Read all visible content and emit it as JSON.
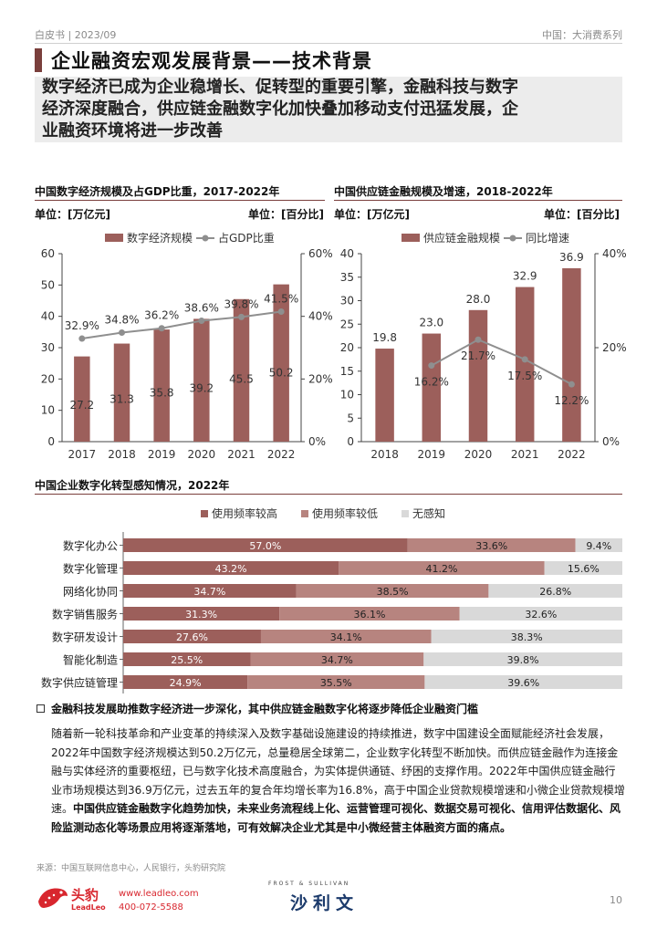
{
  "header": {
    "left": "白皮书 | 2023/09",
    "right": "中国：大消费系列"
  },
  "title": "企业融资宏观发展背景——技术背景",
  "summary": [
    "数字经济已成为企业稳增长、促转型的重要引擎，金融科技与数字",
    "经济深度融合，供应链金融数字化加快叠加移动支付迅猛发展，企",
    "业融资环境将进一步改善"
  ],
  "colors": {
    "bar_dark": "#9c5f5b",
    "bar_mid": "#b7847f",
    "bar_light": "#d9d9d9",
    "line": "#8f8f8f",
    "accent": "#7a3f3c"
  },
  "chart_data": [
    {
      "type": "bar+line",
      "title": "中国数字经济规模及占GDP比重，2017-2022年",
      "unit_left": "单位：[万亿元]",
      "unit_right": "单位：[百分比]",
      "legend": [
        "数字经济规模",
        "占GDP比重"
      ],
      "categories": [
        "2017",
        "2018",
        "2019",
        "2020",
        "2021",
        "2022"
      ],
      "bar_values": [
        27.2,
        31.3,
        35.8,
        39.2,
        45.5,
        50.2
      ],
      "bar_labels": [
        "27.2",
        "31.3",
        "35.8",
        "39.2",
        "45.5",
        "50.2"
      ],
      "line_values": [
        32.9,
        34.8,
        36.2,
        38.6,
        39.8,
        41.5
      ],
      "line_labels": [
        "32.9%",
        "34.8%",
        "36.2%",
        "38.6%",
        "39.8%",
        "41.5%"
      ],
      "y_left": {
        "min": 0,
        "max": 60,
        "ticks": [
          "0",
          "10",
          "20",
          "30",
          "40",
          "50",
          "60"
        ]
      },
      "y_right": {
        "min": 0,
        "max": 60,
        "ticks": [
          "0%",
          "20%",
          "40%",
          "60%"
        ]
      }
    },
    {
      "type": "bar+line",
      "title": "中国供应链金融规模及增速，2018-2022年",
      "unit_left": "单位：[万亿元]",
      "unit_right": "单位：[百分比]",
      "legend": [
        "供应链金融规模",
        "同比增速"
      ],
      "categories": [
        "2018",
        "2019",
        "2020",
        "2021",
        "2022"
      ],
      "bar_values": [
        19.8,
        23.0,
        28.0,
        32.9,
        36.9
      ],
      "bar_labels": [
        "19.8",
        "23.0",
        "28.0",
        "32.9",
        "36.9"
      ],
      "line_values": [
        null,
        16.2,
        21.7,
        17.5,
        12.2
      ],
      "line_labels": [
        "",
        "16.2%",
        "21.7%",
        "17.5%",
        "12.2%"
      ],
      "y_left": {
        "min": 0,
        "max": 40,
        "ticks": [
          "0",
          "5",
          "10",
          "15",
          "20",
          "25",
          "30",
          "35",
          "40"
        ]
      },
      "y_right": {
        "min": 0,
        "max": 40,
        "ticks": [
          "0%",
          "20%",
          "40%"
        ]
      }
    },
    {
      "type": "stacked-bar-horizontal",
      "title": "中国企业数字化转型感知情况，2022年",
      "legend": [
        "使用频率较高",
        "使用频率较低",
        "无感知"
      ],
      "categories": [
        "数字化办公",
        "数字化管理",
        "网络化协同",
        "数字销售服务",
        "数字研发设计",
        "智能化制造",
        "数字供应链管理"
      ],
      "series": [
        {
          "name": "使用频率较高",
          "values": [
            57.0,
            43.2,
            34.7,
            31.3,
            27.6,
            25.5,
            24.9
          ]
        },
        {
          "name": "使用频率较低",
          "values": [
            33.6,
            41.2,
            38.5,
            36.1,
            34.1,
            34.7,
            35.5
          ]
        },
        {
          "name": "无感知",
          "values": [
            9.4,
            15.6,
            26.8,
            32.6,
            38.3,
            39.8,
            39.6
          ]
        }
      ]
    }
  ],
  "bullet": "金融科技发展助推数字经济进一步深化，其中供应链金融数字化将逐步降低企业融资门槛",
  "paragraph": {
    "normal": "随着新一轮科技革命和产业变革的持续深入及数字基础设施建设的持续推进，数字中国建设全面赋能经济社会发展，2022年中国数字经济规模达到50.2万亿元，总量稳居全球第二，企业数字化转型不断加快。而供应链金融作为连接金融与实体经济的重要枢纽，已与数字化技术高度融合，为实体提供通链、纾困的支撑作用。2022年中国供应链金融行业市场规模达到36.9万亿元，过去五年的复合年均增长率为16.8%，高于中国企业贷款规模增速和小微企业贷款规模增速。",
    "bold": "中国供应链金融数字化趋势加快，未来业务流程线上化、运营管理可视化、数据交易可视化、信用评估数据化、风险监测动态化等场景应用将逐渐落地，可有效解决企业尤其是中小微经营主体融资方面的痛点。"
  },
  "source": "来源：中国互联网信息中心，人民银行，头豹研究院",
  "footer": {
    "logo_cn": "头豹",
    "logo_en": "LeadLeo",
    "url": "www.leadleo.com",
    "tel": "400-072-5588",
    "partner_en": "FROST & SULLIVAN",
    "partner_cn": "沙利文",
    "page": "10"
  }
}
